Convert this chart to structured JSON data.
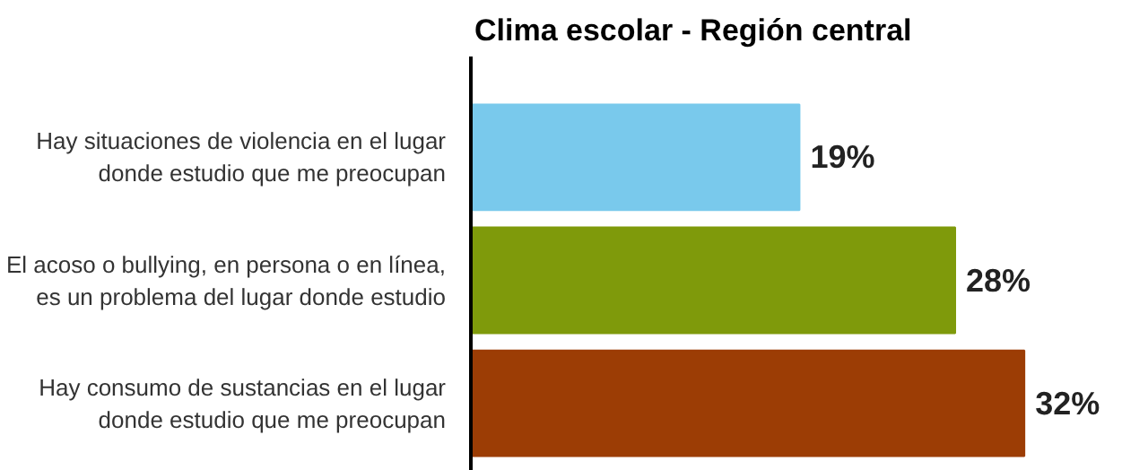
{
  "chart_data": {
    "type": "bar",
    "orientation": "horizontal",
    "title": "Clima escolar - Región central",
    "categories": [
      "Hay situaciones de violencia en el lugar\ndonde estudio que me preocupan",
      "El acoso o bullying, en persona o en línea,\nes un problema del lugar donde estudio",
      "Hay consumo de sustancias en el lugar\ndonde estudio que me preocupan"
    ],
    "values": [
      19,
      28,
      32
    ],
    "colors": [
      "#79c9ec",
      "#7f9a0b",
      "#9c3d05"
    ],
    "value_labels": [
      "19%",
      "28%",
      "32%"
    ]
  }
}
